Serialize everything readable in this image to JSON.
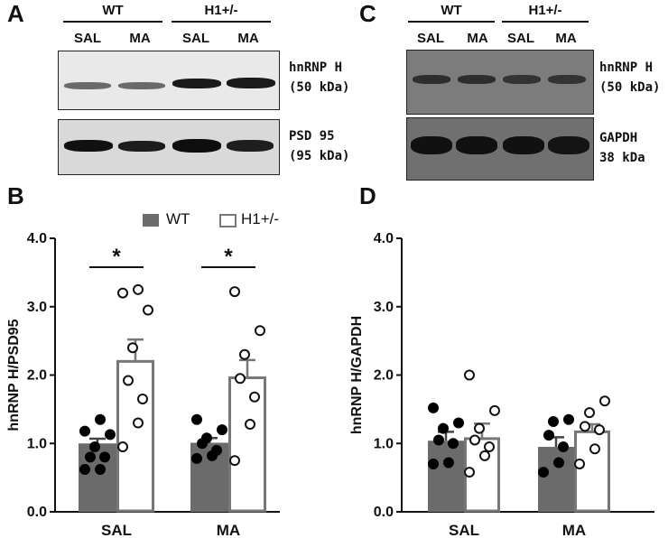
{
  "figure": {
    "panels": {
      "A": "A",
      "B": "B",
      "C": "C",
      "D": "D"
    },
    "blotA": {
      "groups": [
        "WT",
        "H1+/-"
      ],
      "lanes": [
        "SAL",
        "MA",
        "SAL",
        "MA"
      ],
      "blot1_label_line1": "hnRNP H",
      "blot1_label_line2": "(50 kDa)",
      "blot2_label_line1": "PSD 95",
      "blot2_label_line2": "(95 kDa)"
    },
    "blotC": {
      "groups": [
        "WT",
        "H1+/-"
      ],
      "lanes": [
        "SAL",
        "MA",
        "SAL",
        "MA"
      ],
      "blot1_label_line1": "hnRNP H",
      "blot1_label_line2": "(50 kDa)",
      "blot2_label_line1": "GAPDH",
      "blot2_label_line2": "38 kDa"
    },
    "legend": {
      "wt": "WT",
      "h1": "H1+/-"
    }
  },
  "chart_data": [
    {
      "panel": "B",
      "type": "bar",
      "categories": [
        "SAL",
        "MA"
      ],
      "ylabel": "hnRNP H/PSD95",
      "ylim": [
        0,
        4
      ],
      "yticks": [
        "0.0",
        "1.0",
        "2.0",
        "3.0",
        "4.0"
      ],
      "colors": {
        "WT": "#6b6b6b",
        "H1+/-": "#ffffff"
      },
      "series": [
        {
          "name": "WT",
          "values": [
            1.0,
            1.01
          ],
          "sem": [
            0.07,
            0.07
          ],
          "points": [
            [
              0.62,
              0.62,
              0.8,
              0.8,
              0.95,
              1.13,
              1.18,
              1.35
            ],
            [
              0.78,
              0.82,
              0.9,
              1.0,
              1.08,
              1.2,
              1.35
            ]
          ]
        },
        {
          "name": "H1+/-",
          "values": [
            2.2,
            1.96
          ],
          "sem": [
            0.32,
            0.26
          ],
          "points": [
            [
              0.95,
              1.3,
              1.65,
              1.92,
              2.4,
              2.95,
              3.2,
              3.25
            ],
            [
              0.75,
              1.28,
              1.68,
              1.95,
              2.3,
              2.65,
              3.22
            ]
          ]
        }
      ],
      "significance": [
        "*",
        "*"
      ]
    },
    {
      "panel": "D",
      "type": "bar",
      "categories": [
        "SAL",
        "MA"
      ],
      "ylabel": "hnRNP H/GAPDH",
      "ylim": [
        0,
        4
      ],
      "yticks": [
        "0.0",
        "1.0",
        "2.0",
        "3.0",
        "4.0"
      ],
      "colors": {
        "WT": "#6b6b6b",
        "H1+/-": "#ffffff"
      },
      "series": [
        {
          "name": "WT",
          "values": [
            1.04,
            0.95
          ],
          "sem": [
            0.13,
            0.14
          ],
          "points": [
            [
              0.7,
              0.72,
              1.0,
              1.05,
              1.22,
              1.3,
              1.52
            ],
            [
              0.58,
              0.72,
              0.95,
              1.12,
              1.32,
              1.35
            ]
          ]
        },
        {
          "name": "H1+/-",
          "values": [
            1.07,
            1.17
          ],
          "sem": [
            0.22,
            0.11
          ],
          "points": [
            [
              0.58,
              0.82,
              0.95,
              1.05,
              1.22,
              1.48,
              2.0
            ],
            [
              0.7,
              0.92,
              1.2,
              1.25,
              1.45,
              1.62
            ]
          ]
        }
      ],
      "significance": []
    }
  ]
}
